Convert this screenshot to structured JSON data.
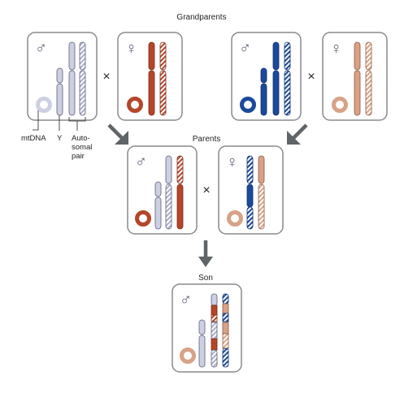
{
  "headings": {
    "grandparents": "Grandparents",
    "parents": "Parents",
    "son": "Son"
  },
  "symbols": {
    "male": "♂",
    "female": "♀",
    "cross": "×"
  },
  "legend": {
    "mtdna": "mtDNA",
    "y": "Y",
    "autosomal_line1": "Auto-",
    "autosomal_line2": "somal",
    "autosomal_line3": "pair"
  },
  "colors": {
    "lavender": "#cdd0e3",
    "lavender_stroke": "#5d5e78",
    "rust": "#b5462a",
    "rust_stroke": "#7a2a16",
    "navy": "#1b4a9b",
    "navy_stroke": "#0e2f6a",
    "peach": "#d8a286",
    "peach_stroke": "#8e5a40",
    "arrow": "#5e6468",
    "panel_stroke": "#8a8a8a",
    "panel_fill": "#ffffff"
  }
}
